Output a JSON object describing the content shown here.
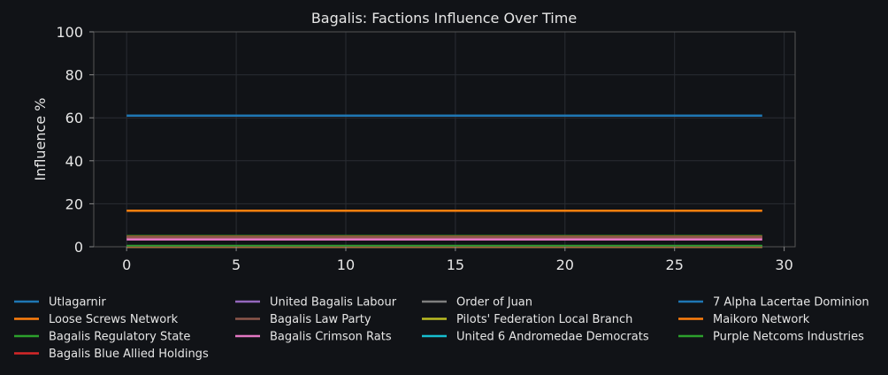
{
  "chart_data": {
    "type": "line",
    "title": "Bagalis: Factions Influence Over Time",
    "xlabel": "",
    "ylabel": "Influence %",
    "xlim": [
      -1.5,
      30.5
    ],
    "ylim": [
      0,
      100
    ],
    "xticks": [
      0,
      5,
      10,
      15,
      20,
      25,
      30
    ],
    "yticks": [
      0,
      20,
      40,
      60,
      80,
      100
    ],
    "grid": true,
    "legend_position": "bottom",
    "x": [
      0,
      29
    ],
    "series": [
      {
        "name": "Utlagarnir",
        "color": "#1f77b4",
        "values": [
          61,
          61
        ]
      },
      {
        "name": "Loose Screws Network",
        "color": "#ff7f0e",
        "values": [
          16.8,
          16.8
        ]
      },
      {
        "name": "Bagalis Regulatory State",
        "color": "#2ca02c",
        "values": [
          5,
          5
        ]
      },
      {
        "name": "Bagalis Blue Allied Holdings",
        "color": "#d62728",
        "values": [
          4.6,
          4.6
        ]
      },
      {
        "name": "United Bagalis Labour",
        "color": "#9467bd",
        "values": [
          4.2,
          4.2
        ]
      },
      {
        "name": "Bagalis Law Party",
        "color": "#8c564b",
        "values": [
          4.4,
          4.4
        ]
      },
      {
        "name": "Bagalis Crimson Rats",
        "color": "#e377c2",
        "values": [
          3.4,
          3.4
        ]
      },
      {
        "name": "Order of Juan",
        "color": "#7f7f7f",
        "values": [
          0.2,
          0.2
        ]
      },
      {
        "name": "Pilots' Federation Local Branch",
        "color": "#bcbd22",
        "values": [
          0,
          0
        ]
      },
      {
        "name": "United 6 Andromedae Democrats",
        "color": "#17becf",
        "values": [
          0,
          0
        ]
      },
      {
        "name": "7 Alpha Lacertae Dominion",
        "color": "#1f77b4",
        "values": [
          0,
          0
        ]
      },
      {
        "name": "Maikoro Network",
        "color": "#ff7f0e",
        "values": [
          0,
          0
        ]
      },
      {
        "name": "Purple Netcoms Industries",
        "color": "#2ca02c",
        "values": [
          0.4,
          0.4
        ]
      }
    ]
  }
}
